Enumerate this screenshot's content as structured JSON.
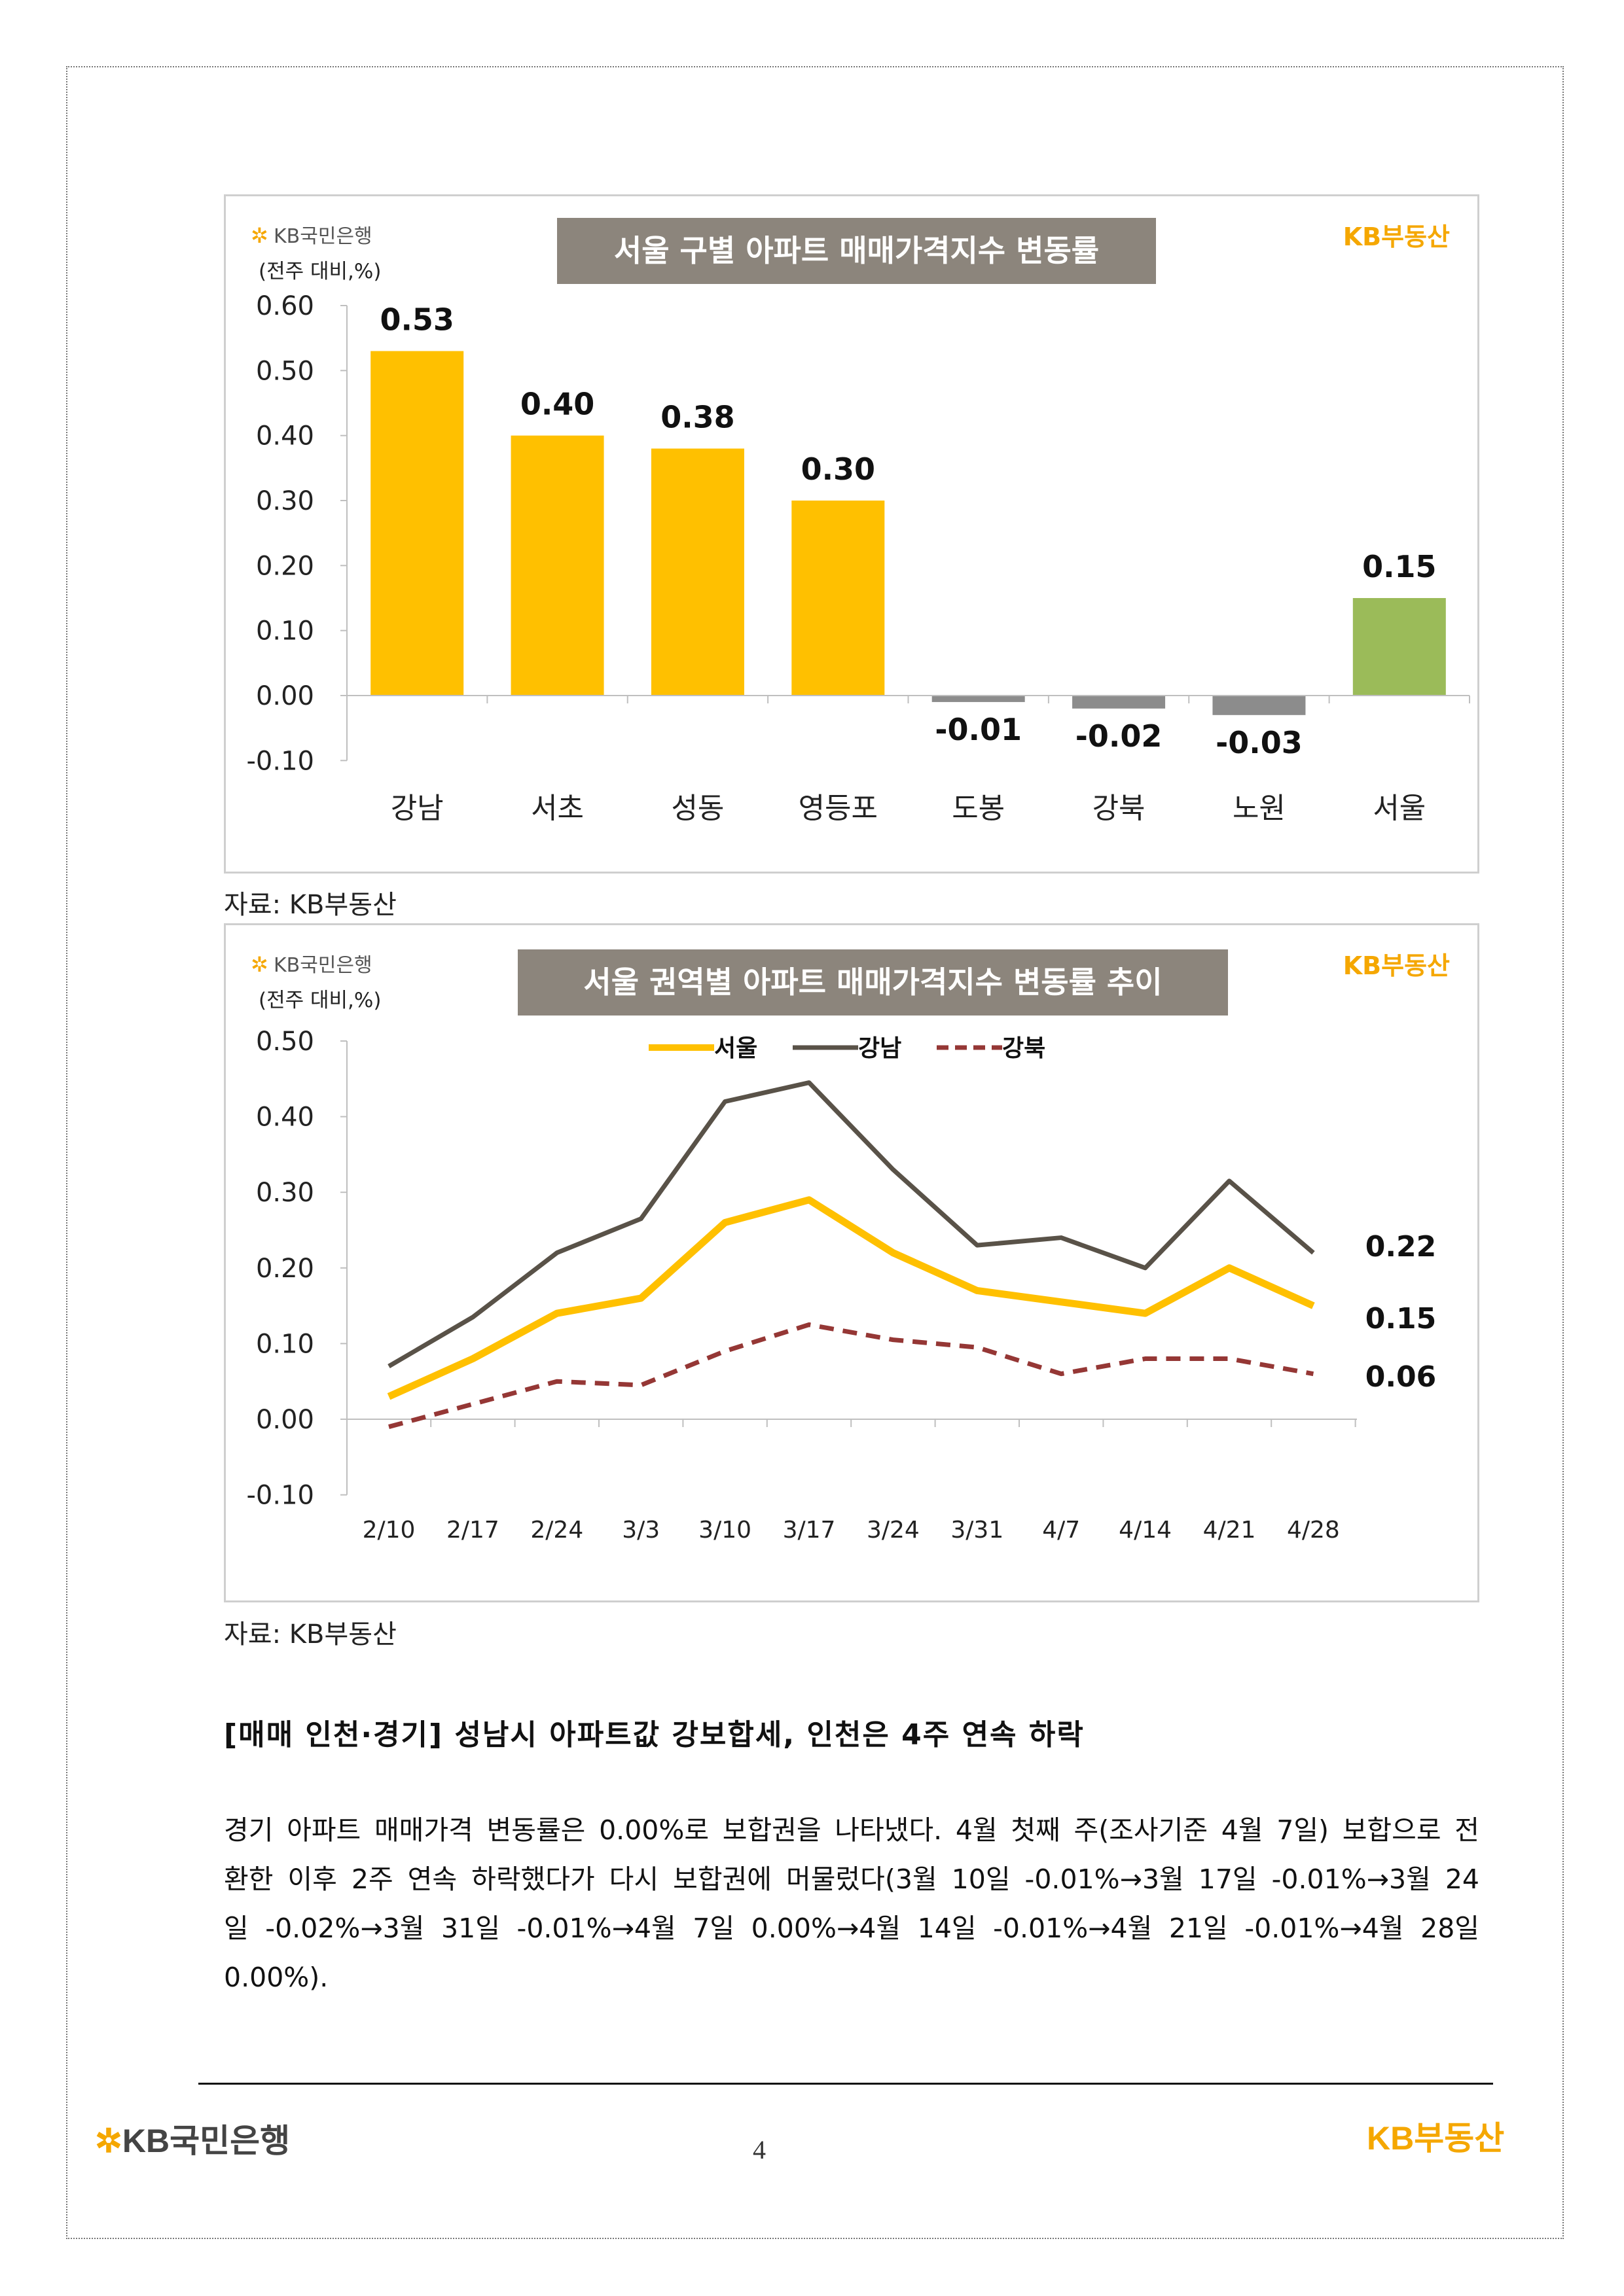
{
  "colors": {
    "yellow": "#FFC000",
    "green": "#9BBB59",
    "grey_bar": "#8C8C8C",
    "gangnam": "#595248",
    "gangbuk": "#953735",
    "title_box": "#8C857C",
    "kb_orange": "#F5A700"
  },
  "logos": {
    "kb_bank": "KB국민은행",
    "kb_realestate": "KB부동산"
  },
  "chart_data": [
    {
      "type": "bar",
      "title": "서울 구별 아파트 매매가격지수 변동률",
      "unit": "(전주 대비,%)",
      "categories": [
        "강남",
        "서초",
        "성동",
        "영등포",
        "도봉",
        "강북",
        "노원",
        "서울"
      ],
      "values": [
        0.53,
        0.4,
        0.38,
        0.3,
        -0.01,
        -0.02,
        -0.03,
        0.15
      ],
      "value_labels": [
        "0.53",
        "0.40",
        "0.38",
        "0.30",
        "-0.01",
        "-0.02",
        "-0.03",
        "0.15"
      ],
      "bar_colors": [
        "#FFC000",
        "#FFC000",
        "#FFC000",
        "#FFC000",
        "#8C8C8C",
        "#8C8C8C",
        "#8C8C8C",
        "#9BBB59"
      ],
      "yticks": [
        "0.60",
        "0.50",
        "0.40",
        "0.30",
        "0.20",
        "0.10",
        "0.00",
        "-0.10"
      ],
      "ylim": [
        -0.1,
        0.6
      ],
      "grid": false
    },
    {
      "type": "line",
      "title": "서울 권역별 아파트 매매가격지수 변동률 추이",
      "unit": "(전주 대비,%)",
      "x": [
        "2/10",
        "2/17",
        "2/24",
        "3/3",
        "3/10",
        "3/17",
        "3/24",
        "3/31",
        "4/7",
        "4/14",
        "4/21",
        "4/28"
      ],
      "series": [
        {
          "name": "서울",
          "color": "#FFC000",
          "dash": false,
          "values": [
            0.03,
            0.08,
            0.14,
            0.16,
            0.26,
            0.29,
            0.22,
            0.17,
            0.155,
            0.14,
            0.2,
            0.15
          ],
          "end_label": "0.15"
        },
        {
          "name": "강남",
          "color": "#595248",
          "dash": false,
          "values": [
            0.07,
            0.135,
            0.22,
            0.265,
            0.42,
            0.445,
            0.33,
            0.23,
            0.24,
            0.2,
            0.315,
            0.22
          ],
          "end_label": "0.22"
        },
        {
          "name": "강북",
          "color": "#953735",
          "dash": true,
          "values": [
            -0.01,
            0.02,
            0.05,
            0.045,
            0.09,
            0.125,
            0.105,
            0.095,
            0.06,
            0.08,
            0.08,
            0.06
          ],
          "end_label": "0.06"
        }
      ],
      "yticks": [
        "0.50",
        "0.40",
        "0.30",
        "0.20",
        "0.10",
        "0.00",
        "-0.10"
      ],
      "ylim": [
        -0.1,
        0.5
      ],
      "legend": "top-center",
      "grid": false
    }
  ],
  "sources": [
    "자료: KB부동산",
    "자료: KB부동산"
  ],
  "section": {
    "heading": "[매매 인천·경기] 성남시 아파트값 강보합세, 인천은 4주 연속 하락",
    "paragraph": "경기 아파트 매매가격 변동률은 0.00%로 보합권을 나타냈다. 4월 첫째 주(조사기준 4월 7일) 보합으로 전환한 이후 2주 연속 하락했다가 다시 보합권에 머물렀다(3월 10일 -0.01%→3월 17일 -0.01%→3월 24일 -0.02%→3월 31일 -0.01%→4월 7일 0.00%→4월 14일 -0.01%→4월 21일 -0.01%→4월 28일 0.00%)."
  },
  "footer": {
    "page_number": "4"
  }
}
